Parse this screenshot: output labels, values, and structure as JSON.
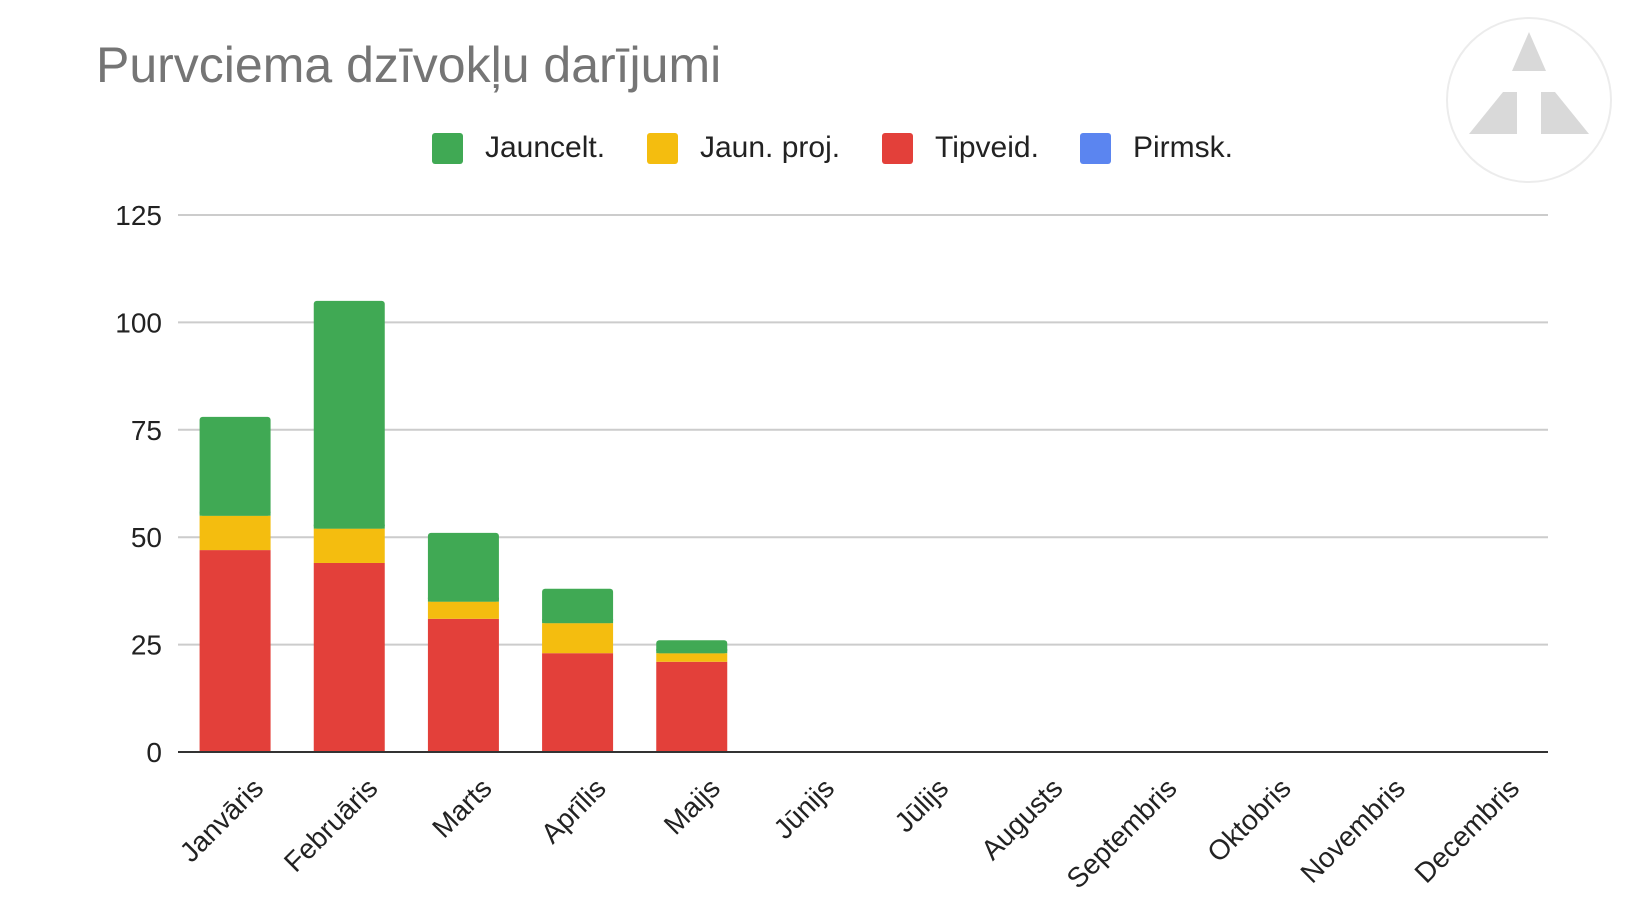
{
  "chart_data": {
    "type": "bar",
    "stacked": true,
    "title": "Purvciema dzīvokļu darījumi",
    "categories": [
      "Janvāris",
      "Februāris",
      "Marts",
      "Aprīlis",
      "Maijs",
      "Jūnijs",
      "Jūlijs",
      "Augusts",
      "Septembris",
      "Oktobris",
      "Novembris",
      "Decembris"
    ],
    "series": [
      {
        "name": "Pirmsk.",
        "color": "#5b85f0",
        "values": [
          0,
          0,
          0,
          0,
          0,
          0,
          0,
          0,
          0,
          0,
          0,
          0
        ]
      },
      {
        "name": "Tipveid.",
        "color": "#e3403a",
        "values": [
          47,
          44,
          31,
          23,
          21,
          0,
          0,
          0,
          0,
          0,
          0,
          0
        ]
      },
      {
        "name": "Jaun. proj.",
        "color": "#f4bd0f",
        "values": [
          8,
          8,
          4,
          7,
          2,
          0,
          0,
          0,
          0,
          0,
          0,
          0
        ]
      },
      {
        "name": "Jauncelt.",
        "color": "#40a954",
        "values": [
          23,
          53,
          16,
          8,
          3,
          0,
          0,
          0,
          0,
          0,
          0,
          0
        ]
      }
    ],
    "legend_order": [
      "Jauncelt.",
      "Jaun. proj.",
      "Tipveid.",
      "Pirmsk."
    ],
    "ylim": [
      0,
      125
    ],
    "yticks": [
      0,
      25,
      50,
      75,
      100,
      125
    ],
    "xlabel": "",
    "ylabel": "",
    "grid": true,
    "legend_position": "top"
  },
  "legend": [
    {
      "label": "Jauncelt.",
      "color": "#40a954"
    },
    {
      "label": "Jaun. proj.",
      "color": "#f4bd0f"
    },
    {
      "label": "Tipveid.",
      "color": "#e3403a"
    },
    {
      "label": "Pirmsk.",
      "color": "#5b85f0"
    }
  ],
  "logo": {
    "icon": "triangle-logo-icon",
    "color": "#d9d9d9"
  }
}
